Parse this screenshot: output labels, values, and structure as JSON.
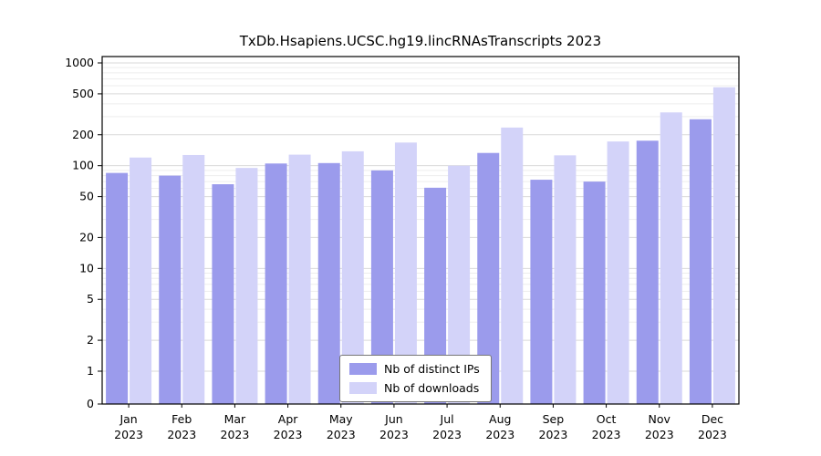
{
  "chart_data": {
    "type": "bar",
    "title": "TxDb.Hsapiens.UCSC.hg19.lincRNAsTranscripts 2023",
    "categories": [
      "Jan",
      "Feb",
      "Mar",
      "Apr",
      "May",
      "Jun",
      "Jul",
      "Aug",
      "Sep",
      "Oct",
      "Nov",
      "Dec"
    ],
    "year": "2023",
    "series": [
      {
        "name": "Nb of distinct IPs",
        "color": "#9b9bec",
        "values": [
          85,
          80,
          66,
          105,
          106,
          90,
          61,
          133,
          73,
          70,
          175,
          283
        ]
      },
      {
        "name": "Nb of downloads",
        "color": "#d3d3f9",
        "values": [
          120,
          127,
          95,
          128,
          138,
          168,
          100,
          235,
          126,
          172,
          330,
          580
        ]
      }
    ],
    "y_ticks": [
      0,
      1,
      2,
      5,
      10,
      20,
      50,
      100,
      200,
      500,
      1000
    ],
    "scale": "symlog",
    "ylim": [
      0,
      1000
    ],
    "grid": true,
    "legend_position": "bottom-center"
  },
  "style": {
    "grid_major_color": "#d9d9d9",
    "grid_minor_color": "#ededed",
    "axis_color": "#000000",
    "text_color": "#000000"
  }
}
